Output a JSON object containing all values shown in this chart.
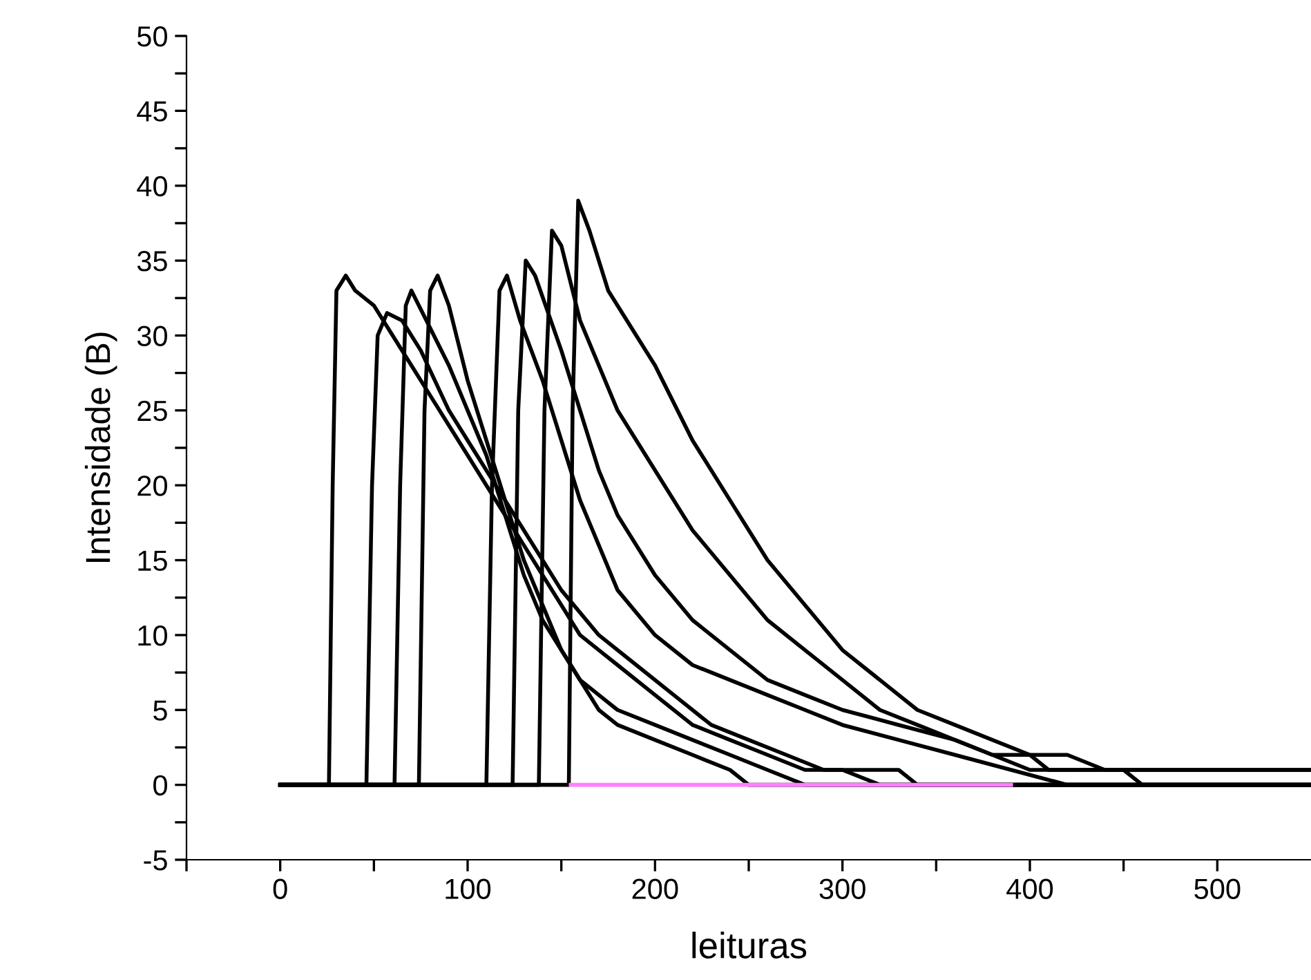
{
  "chart_data": {
    "type": "line",
    "xlabel": "leituras",
    "ylabel": "Intensidade (B)",
    "xlim": [
      -50,
      550
    ],
    "ylim": [
      -5,
      50
    ],
    "xticks": [
      {
        "value": -50,
        "label": null
      },
      0,
      {
        "value": 50,
        "label": null
      },
      100,
      {
        "value": 150,
        "label": null
      },
      200,
      {
        "value": 250,
        "label": null
      },
      300,
      {
        "value": 350,
        "label": null
      },
      400,
      {
        "value": 450,
        "label": null
      },
      500
    ],
    "yticks": [
      -5,
      {
        "value": -2.5,
        "label": null
      },
      0,
      {
        "value": 2.5,
        "label": null
      },
      5,
      {
        "value": 7.5,
        "label": null
      },
      10,
      {
        "value": 12.5,
        "label": null
      },
      15,
      {
        "value": 17.5,
        "label": null
      },
      20,
      {
        "value": 22.5,
        "label": null
      },
      25,
      {
        "value": 27.5,
        "label": null
      },
      30,
      {
        "value": 32.5,
        "label": null
      },
      35,
      {
        "value": 37.5,
        "label": null
      },
      40,
      {
        "value": 42.5,
        "label": null
      },
      45,
      {
        "value": 47.5,
        "label": null
      },
      50
    ],
    "grid": false,
    "legend": false,
    "marker": "none",
    "line_style": "solid",
    "series": [
      {
        "color": "#000000",
        "x": [
          0,
          26,
          28,
          30,
          35,
          40,
          50,
          60,
          70,
          80,
          90,
          100,
          110,
          120,
          130,
          140,
          150,
          160,
          170,
          180,
          200,
          220,
          240,
          260,
          280,
          300,
          320,
          550
        ],
        "values": [
          0,
          0,
          20,
          33,
          34,
          33,
          32,
          30,
          28,
          26,
          24,
          22,
          20,
          18,
          16,
          14,
          12,
          10,
          9,
          8,
          6,
          4,
          3,
          2,
          1,
          1,
          0,
          0
        ]
      },
      {
        "color": "#000000",
        "x": [
          0,
          46,
          49,
          52,
          57,
          65,
          75,
          90,
          100,
          110,
          120,
          130,
          140,
          150,
          170,
          190,
          210,
          230,
          250,
          270,
          290,
          330,
          340,
          550
        ],
        "values": [
          0,
          0,
          20,
          30,
          31.5,
          31,
          29,
          25,
          23,
          21,
          19,
          17,
          15,
          13,
          10,
          8,
          6,
          4,
          3,
          2,
          1,
          1,
          0,
          0
        ]
      },
      {
        "color": "#000000",
        "x": [
          0,
          61,
          64,
          67,
          70,
          78,
          90,
          100,
          110,
          120,
          130,
          140,
          150,
          160,
          180,
          200,
          220,
          240,
          260,
          280,
          550
        ],
        "values": [
          0,
          0,
          20,
          32,
          33,
          31,
          28,
          25,
          22,
          18,
          14,
          11,
          9,
          7,
          5,
          4,
          3,
          2,
          1,
          0,
          0
        ]
      },
      {
        "color": "#000000",
        "x": [
          0,
          74,
          77,
          80,
          84,
          90,
          100,
          110,
          120,
          130,
          140,
          150,
          160,
          170,
          180,
          200,
          220,
          240,
          250,
          550
        ],
        "values": [
          0,
          0,
          25,
          33,
          34,
          32,
          27,
          23,
          19,
          15,
          12,
          9,
          7,
          5,
          4,
          3,
          2,
          1,
          0,
          0
        ]
      },
      {
        "color": "#000000",
        "x": [
          0,
          110,
          113,
          117,
          121,
          128,
          140,
          150,
          160,
          170,
          180,
          200,
          220,
          240,
          260,
          280,
          300,
          330,
          360,
          390,
          420,
          550
        ],
        "values": [
          0,
          0,
          20,
          33,
          34,
          31,
          27,
          23,
          19,
          16,
          13,
          10,
          8,
          7,
          6,
          5,
          4,
          3,
          2,
          1,
          0,
          0
        ]
      },
      {
        "color": "#000000",
        "x": [
          0,
          124,
          127,
          131,
          136,
          150,
          160,
          170,
          180,
          200,
          220,
          240,
          260,
          280,
          300,
          330,
          360,
          380,
          400,
          450,
          460,
          550
        ],
        "values": [
          0,
          0,
          25,
          35,
          34,
          29,
          25,
          21,
          18,
          14,
          11,
          9,
          7,
          6,
          5,
          4,
          3,
          2,
          1,
          1,
          0,
          0
        ]
      },
      {
        "color": "#000000",
        "x": [
          0,
          138,
          141,
          145,
          150,
          160,
          170,
          180,
          200,
          220,
          240,
          260,
          280,
          300,
          320,
          340,
          360,
          380,
          400,
          410,
          550
        ],
        "values": [
          0,
          0,
          25,
          37,
          36,
          31,
          28,
          25,
          21,
          17,
          14,
          11,
          9,
          7,
          5,
          4,
          3,
          2,
          2,
          1,
          1
        ]
      },
      {
        "color": "#000000",
        "x": [
          0,
          154,
          156,
          159,
          165,
          175,
          190,
          200,
          220,
          240,
          260,
          280,
          300,
          320,
          340,
          360,
          380,
          400,
          420,
          440,
          550
        ],
        "values": [
          0,
          0,
          25,
          39,
          37,
          33,
          30,
          28,
          23,
          19,
          15,
          12,
          9,
          7,
          5,
          4,
          3,
          2,
          2,
          1,
          1
        ]
      },
      {
        "color": "#ff80ff",
        "x": [
          155,
          390
        ],
        "values": [
          0,
          0
        ]
      }
    ]
  }
}
